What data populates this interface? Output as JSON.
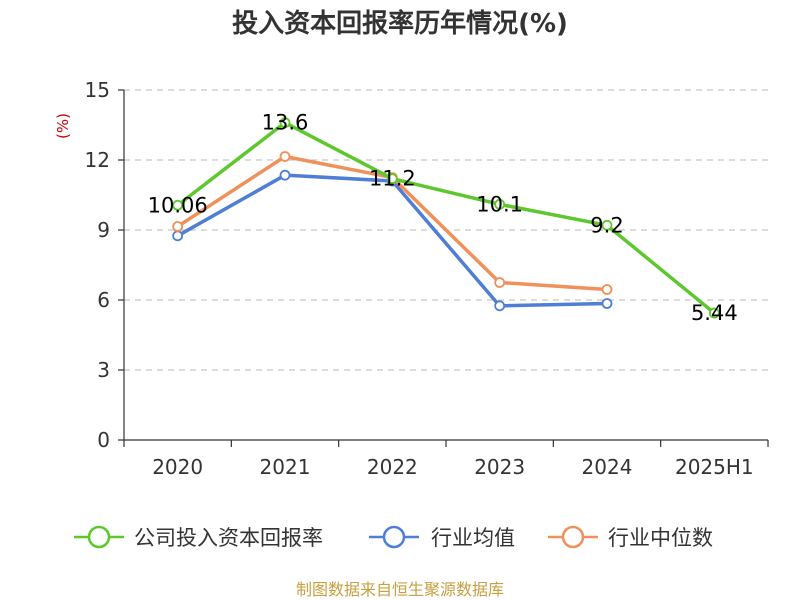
{
  "chart_data": {
    "type": "line",
    "title": "投入资本回报率历年情况(%)",
    "ylabel": "(%)",
    "ylim": [
      0,
      15
    ],
    "yticks": [
      0,
      3,
      6,
      9,
      12,
      15
    ],
    "grid": true,
    "legend_position": "bottom",
    "categories": [
      "2020",
      "2021",
      "2022",
      "2023",
      "2024",
      "2025H1"
    ],
    "series": [
      {
        "name": "公司投入资本回报率",
        "color": "#5cc82d",
        "values": [
          10.06,
          13.6,
          11.2,
          10.1,
          9.2,
          5.44
        ],
        "labels": [
          "10.06",
          "13.6",
          "11.2",
          "10.1",
          "9.2",
          "5.44"
        ]
      },
      {
        "name": "行业均值",
        "color": "#4e7ed6",
        "values": [
          8.75,
          11.35,
          11.1,
          5.75,
          5.85,
          null
        ]
      },
      {
        "name": "行业中位数",
        "color": "#f0905a",
        "values": [
          9.15,
          12.15,
          11.25,
          6.75,
          6.45,
          null
        ]
      }
    ]
  },
  "source": "制图数据来自恒生聚源数据库"
}
